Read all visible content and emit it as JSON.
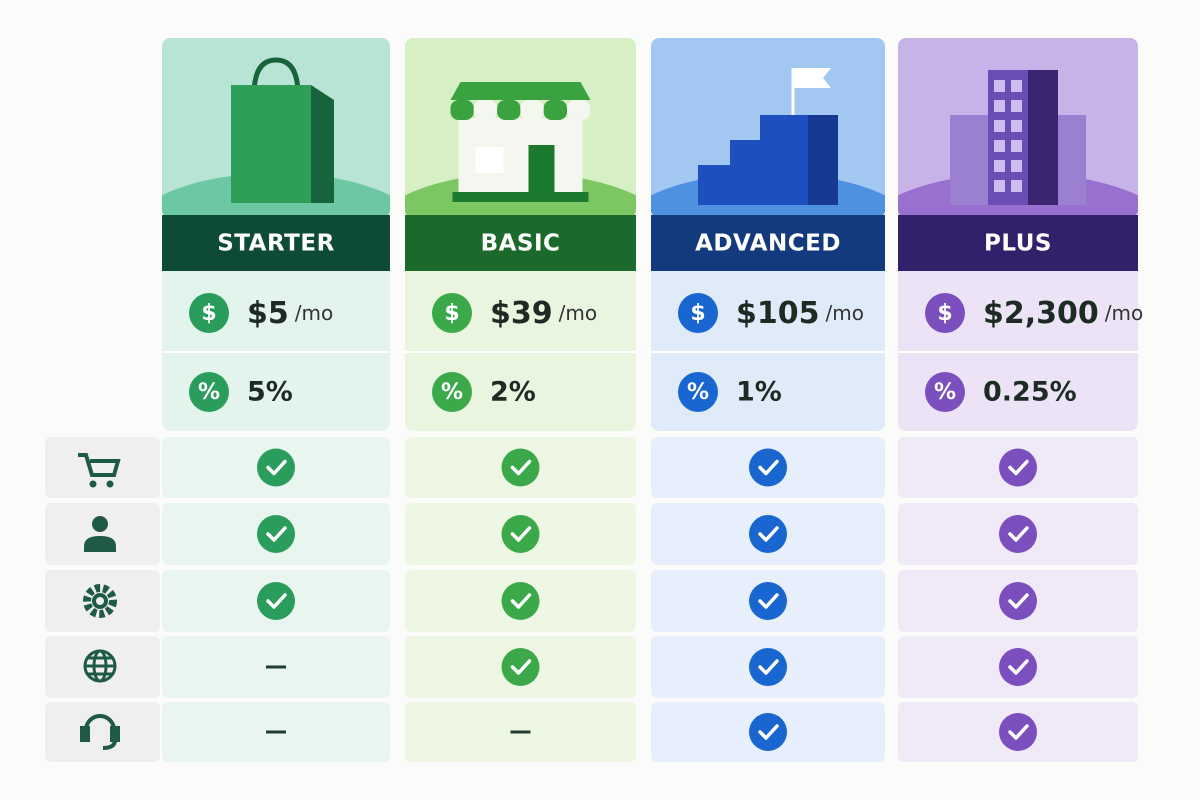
{
  "icons": {
    "price": "$",
    "fee": "%"
  },
  "plans": [
    {
      "name": "STARTER",
      "price": "$5",
      "unit": "/mo",
      "fee": "5%",
      "features": [
        true,
        true,
        true,
        false,
        false
      ]
    },
    {
      "name": "BASIC",
      "price": "$39",
      "unit": "/mo",
      "fee": "2%",
      "features": [
        true,
        true,
        true,
        true,
        false
      ]
    },
    {
      "name": "ADVANCED",
      "price": "$105",
      "unit": "/mo",
      "fee": "1%",
      "features": [
        true,
        true,
        true,
        true,
        true
      ]
    },
    {
      "name": "PLUS",
      "price": "$2,300",
      "unit": "/mo",
      "fee": "0.25%",
      "features": [
        true,
        true,
        true,
        true,
        true
      ]
    }
  ]
}
